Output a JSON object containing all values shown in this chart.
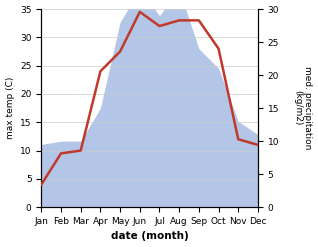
{
  "months": [
    "Jan",
    "Feb",
    "Mar",
    "Apr",
    "May",
    "Jun",
    "Jul",
    "Aug",
    "Sep",
    "Oct",
    "Nov",
    "Dec"
  ],
  "temperature": [
    4,
    9.5,
    10,
    24,
    27.5,
    34.5,
    32,
    33,
    33,
    28,
    12,
    11
  ],
  "precipitation": [
    9.5,
    10,
    10,
    15,
    28,
    33,
    29,
    33,
    24,
    21,
    13,
    11
  ],
  "temp_color": "#c0392b",
  "precip_color": "#b3c6e8",
  "ylabel_left": "max temp (C)",
  "ylabel_right": "med. precipitation\n(kg/m2)",
  "xlabel": "date (month)",
  "ylim_left": [
    0,
    35
  ],
  "ylim_right": [
    0,
    30
  ],
  "yticks_left": [
    0,
    5,
    10,
    15,
    20,
    25,
    30,
    35
  ],
  "yticks_right": [
    0,
    5,
    10,
    15,
    20,
    25,
    30
  ],
  "bg_color": "#ffffff",
  "grid_color": "#cccccc",
  "temp_linewidth": 1.8,
  "label_fontsize": 6.5,
  "xlabel_fontsize": 7.5
}
